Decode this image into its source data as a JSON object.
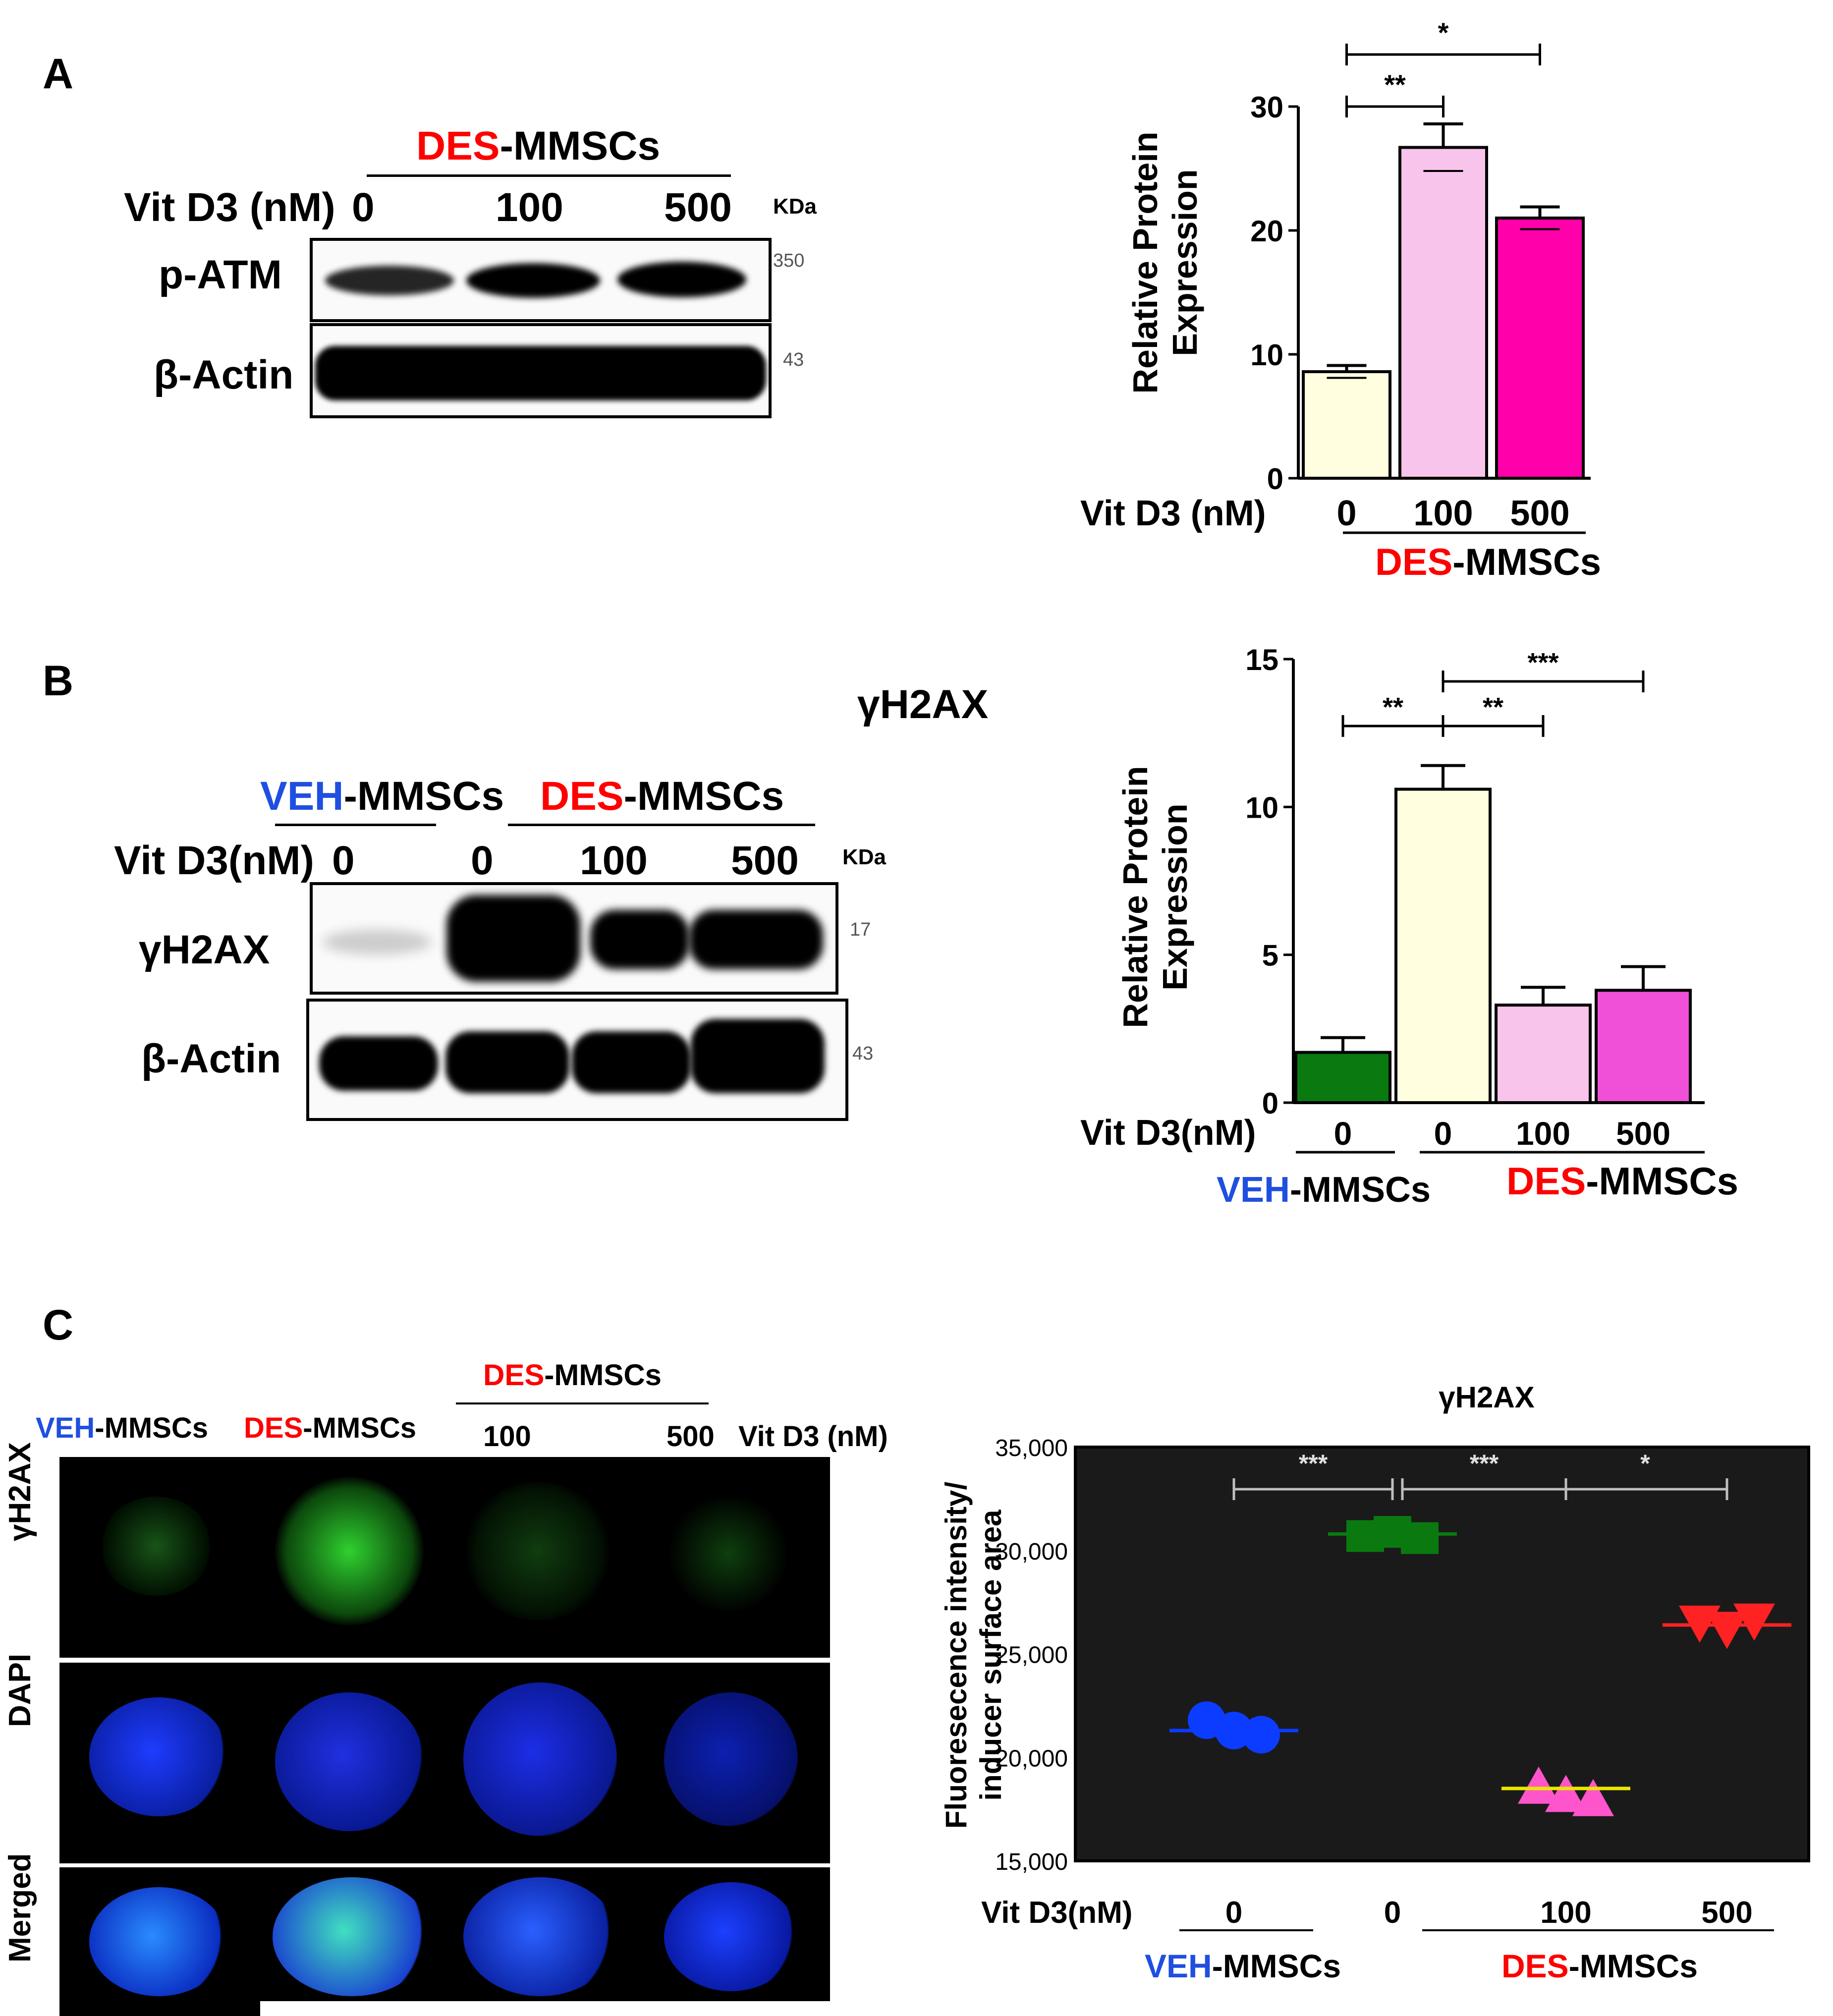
{
  "panels": {
    "A": {
      "letter": "A",
      "group_prefix": "DES",
      "group_suffix": "-MMSCs",
      "dose_label": "Vit D3 (nM)",
      "doses": [
        "0",
        "100",
        "500"
      ],
      "kda_label": "KDa",
      "rows": [
        {
          "label": "p-ATM",
          "kda": "350"
        },
        {
          "label": "β-Actin",
          "kda": "43"
        }
      ]
    },
    "B": {
      "letter": "B",
      "title": "γH2AX",
      "veh_prefix": "VEH",
      "des_prefix": "DES",
      "suffix": "-MMSCs",
      "dose_label": "Vit D3(nM)",
      "doses": [
        "0",
        "0",
        "100",
        "500"
      ],
      "kda_label": "KDa",
      "rows": [
        {
          "label": "γH2AX",
          "kda": "17"
        },
        {
          "label": "β-Actin",
          "kda": "43"
        }
      ]
    },
    "C": {
      "letter": "C",
      "des_prefix": "DES",
      "veh_prefix": "VEH",
      "suffix": "-MMSCs",
      "dose_100": "100",
      "dose_500": "500",
      "dose_label": "Vit D3 (nM)",
      "row_labels": [
        "γH2AX",
        "DAPI",
        "Merged"
      ]
    }
  },
  "chart_data": [
    {
      "type": "bar",
      "ylabel_line1": "Relative  Protein",
      "ylabel_line2": "Expression",
      "xaxis_label": "Vit D3 (nM)",
      "categories": [
        "0",
        "100",
        "500"
      ],
      "values": [
        8.6,
        26.7,
        21.0
      ],
      "errors": [
        0.5,
        1.9,
        0.9
      ],
      "colors": [
        "#ffffe0",
        "#f9c4ec",
        "#ff00aa"
      ],
      "yticks": [
        "0",
        "10",
        "20",
        "30"
      ],
      "ylim": [
        0,
        30
      ],
      "group_prefix": "DES",
      "group_suffix": "-MMSCs",
      "significance": [
        {
          "from": 0,
          "to": 1,
          "label": "**"
        },
        {
          "from": 0,
          "to": 2,
          "label": "*"
        }
      ]
    },
    {
      "type": "bar",
      "ylabel_line1": "Relative  Protein",
      "ylabel_line2": "Expression",
      "xaxis_label": "Vit D3(nM)",
      "categories": [
        "0",
        "0",
        "100",
        "500"
      ],
      "values": [
        1.7,
        10.6,
        3.3,
        3.8
      ],
      "errors": [
        0.5,
        0.8,
        0.6,
        0.8
      ],
      "colors": [
        "#0a7a10",
        "#ffffe0",
        "#f9c4ec",
        "#f050d8"
      ],
      "yticks": [
        "0",
        "5",
        "10",
        "15"
      ],
      "ylim": [
        0,
        15
      ],
      "veh_prefix": "VEH",
      "des_prefix": "DES",
      "suffix": "-MMSCs",
      "significance": [
        {
          "from": 0,
          "to": 1,
          "label": "**"
        },
        {
          "from": 1,
          "to": 2,
          "label": "**"
        },
        {
          "from": 1,
          "to": 3,
          "label": "***"
        }
      ]
    },
    {
      "type": "scatter",
      "title": "γH2AX",
      "ylabel_line1": "Fluoresecence intensity/",
      "ylabel_line2": "inducer surface area",
      "xaxis_label": "Vit D3(nM)",
      "categories": [
        "0",
        "0",
        "100",
        "500"
      ],
      "yticks": [
        "15,000",
        "20,000",
        "25,000",
        "30,000",
        "35,000"
      ],
      "ylim": [
        15000,
        35000
      ],
      "background": "#1a1a1a",
      "series": [
        {
          "x": "0",
          "marker": "circle",
          "color": "#0b3cff",
          "values": [
            21800,
            21300,
            21100
          ],
          "mean": 21300,
          "mean_color": "#0b3cff"
        },
        {
          "x": "0",
          "marker": "square",
          "color": "#0a7a10",
          "values": [
            30700,
            30900,
            30600
          ],
          "mean": 30800,
          "mean_color": "#0a7a10"
        },
        {
          "x": "100",
          "marker": "triangle",
          "color": "#ff55cc",
          "values": [
            18600,
            18200,
            18000
          ],
          "mean": 18500,
          "mean_color": "#e8e800"
        },
        {
          "x": "500",
          "marker": "triangle-down",
          "color": "#ff2222",
          "values": [
            26500,
            26200,
            26600
          ],
          "mean": 26400,
          "mean_color": "#ff2222"
        }
      ],
      "veh_prefix": "VEH",
      "des_prefix": "DES",
      "suffix": "-MMSCs",
      "significance": [
        {
          "from": 0,
          "to": 1,
          "label": "***"
        },
        {
          "from": 1,
          "to": 2,
          "label": "***"
        },
        {
          "from": 2,
          "to": 3,
          "label": "*"
        }
      ]
    }
  ]
}
